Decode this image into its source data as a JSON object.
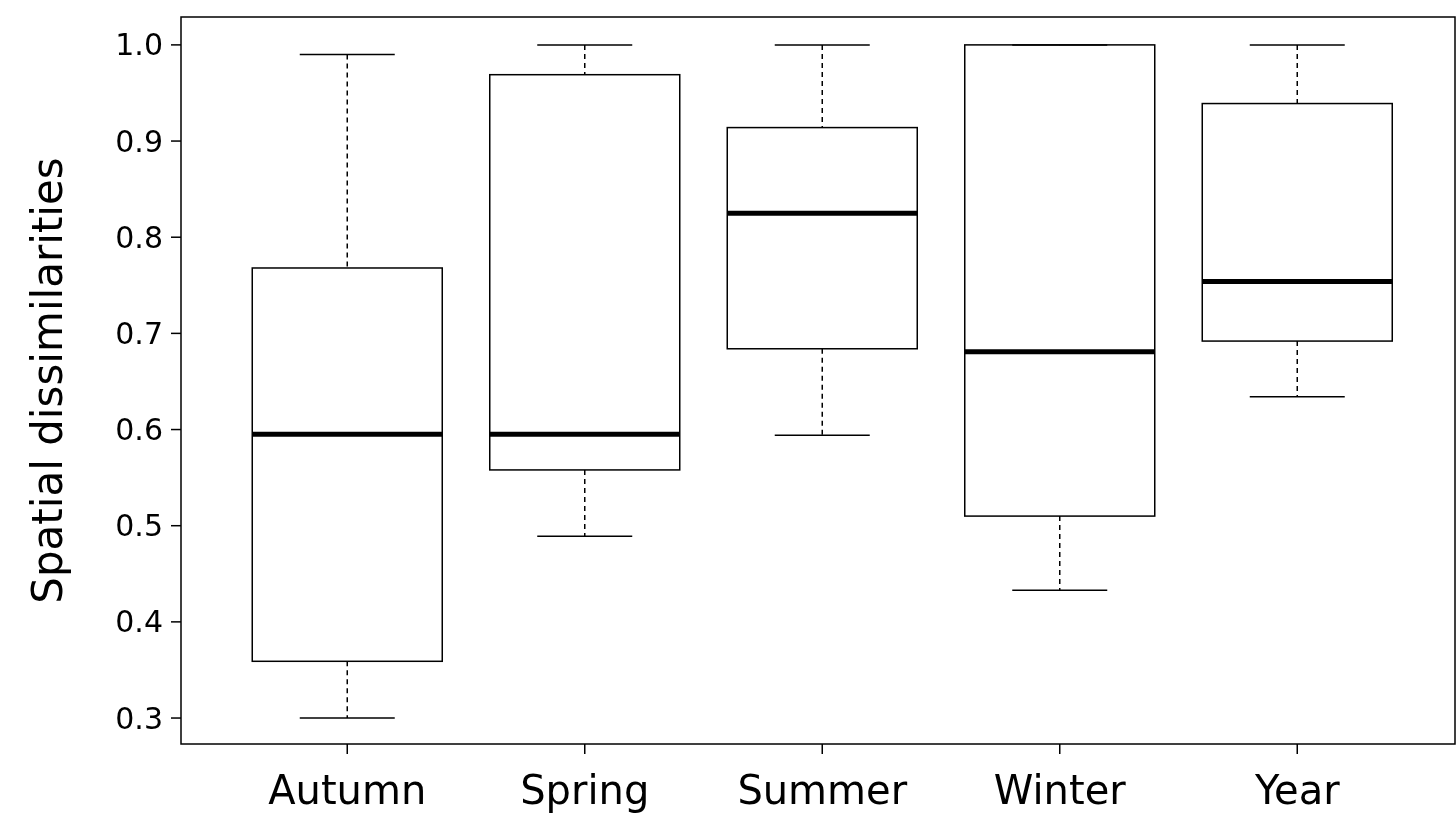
{
  "chart_data": {
    "type": "box",
    "ylabel": "Spatial dissimilarities",
    "categories": [
      "Autumn",
      "Spring",
      "Summer",
      "Winter",
      "Year"
    ],
    "boxes": [
      {
        "low": 0.3,
        "q1": 0.359,
        "median": 0.595,
        "q3": 0.768,
        "high": 0.99
      },
      {
        "low": 0.489,
        "q1": 0.558,
        "median": 0.595,
        "q3": 0.969,
        "high": 1.0
      },
      {
        "low": 0.594,
        "q1": 0.684,
        "median": 0.825,
        "q3": 0.914,
        "high": 1.0
      },
      {
        "low": 0.433,
        "q1": 0.51,
        "median": 0.681,
        "q3": 1.0,
        "high": 1.0
      },
      {
        "low": 0.634,
        "q1": 0.692,
        "median": 0.754,
        "q3": 0.939,
        "high": 1.0
      }
    ],
    "ylim": [
      0.273,
      1.029
    ],
    "yticks": [
      0.3,
      {
        "value": 0.4,
        "label": "0.4"
      },
      {
        "value": 0.5,
        "label": "0.5"
      },
      {
        "value": 0.6,
        "label": "0.6"
      },
      {
        "value": 0.7,
        "label": "0.7"
      },
      {
        "value": 0.8,
        "label": "0.8"
      },
      {
        "value": 0.9,
        "label": "0.9"
      },
      {
        "value": 1.0,
        "label": "1.0"
      }
    ],
    "color": "#000000",
    "grid": false
  }
}
